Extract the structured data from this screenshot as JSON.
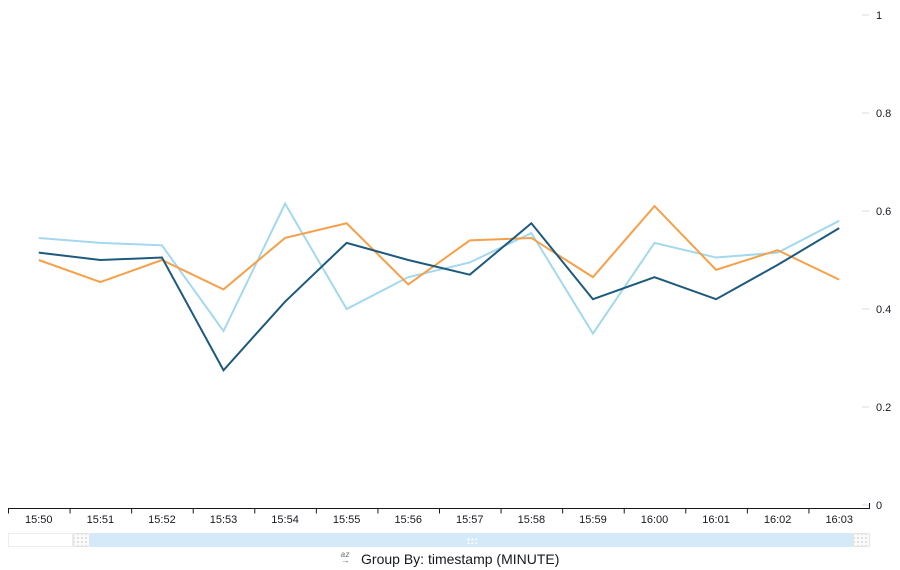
{
  "chart_data": {
    "type": "line",
    "title": "",
    "xlabel": "",
    "ylabel": "",
    "x": [
      "15:50",
      "15:51",
      "15:52",
      "15:53",
      "15:54",
      "15:55",
      "15:56",
      "15:57",
      "15:58",
      "15:59",
      "16:00",
      "16:01",
      "16:02",
      "16:03"
    ],
    "series": [
      {
        "name": "light-blue-series",
        "color": "#a3d8ee",
        "values": [
          0.545,
          0.535,
          0.53,
          0.355,
          0.615,
          0.4,
          0.465,
          0.495,
          0.555,
          0.35,
          0.535,
          0.505,
          0.515,
          0.58
        ]
      },
      {
        "name": "orange-series",
        "color": "#f5a04a",
        "values": [
          0.5,
          0.455,
          0.5,
          0.44,
          0.545,
          0.575,
          0.45,
          0.54,
          0.545,
          0.465,
          0.61,
          0.48,
          0.52,
          0.46
        ]
      },
      {
        "name": "dark-blue-series",
        "color": "#1d5a7d",
        "values": [
          0.515,
          0.5,
          0.505,
          0.275,
          0.415,
          0.535,
          0.5,
          0.47,
          0.575,
          0.42,
          0.465,
          0.42,
          0.49,
          0.565
        ]
      }
    ],
    "ylim": [
      0,
      1
    ],
    "yticks": [
      0,
      0.2,
      0.4,
      0.6,
      0.8,
      1
    ],
    "y_axis_side": "right",
    "grid": false,
    "legend_position": "none"
  },
  "footer": {
    "sort_icon_text_top": "az",
    "sort_icon_text_arrow": "→",
    "group_by_label": "Group By: timestamp (MINUTE)"
  },
  "colors": {
    "series_light_blue": "#a3d8ee",
    "series_orange": "#f5a04a",
    "series_dark_blue": "#1d5a7d",
    "axis_text": "#16191f",
    "axis_line": "#16191f",
    "y_tick_dash": "#d5dbdb",
    "brush_selection": "#d4eaf8",
    "brush_handle_bg": "#fafafa",
    "brush_handle_border": "#e4e4e4"
  }
}
